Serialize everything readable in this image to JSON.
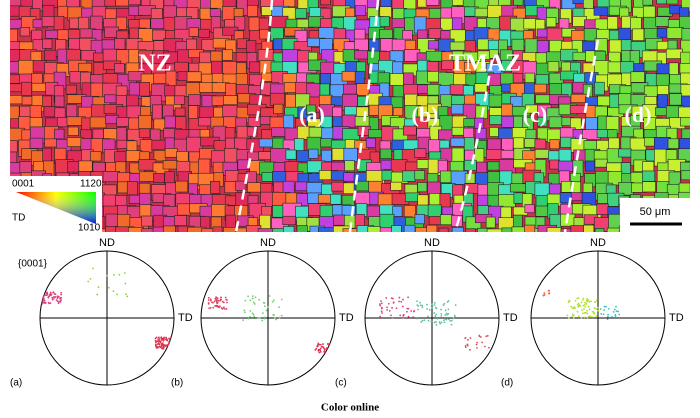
{
  "map": {
    "zone_labels": [
      "NZ",
      "TMAZ"
    ],
    "region_labels": [
      "(a)",
      "(b)",
      "(c)",
      "(d)"
    ],
    "legend": {
      "corners": [
        "0001",
        "1120",
        "1010"
      ],
      "axis": "TD"
    },
    "scale_bar": "50 μm"
  },
  "pole_figures": {
    "plane": "{0001}",
    "panels": [
      {
        "label": "(a)",
        "top": "ND",
        "right": "TD"
      },
      {
        "label": "(b)",
        "top": "ND",
        "right": "TD"
      },
      {
        "label": "(c)",
        "top": "ND",
        "right": "TD"
      },
      {
        "label": "(d)",
        "top": "ND",
        "right": "TD"
      }
    ]
  },
  "caption": "Color online"
}
